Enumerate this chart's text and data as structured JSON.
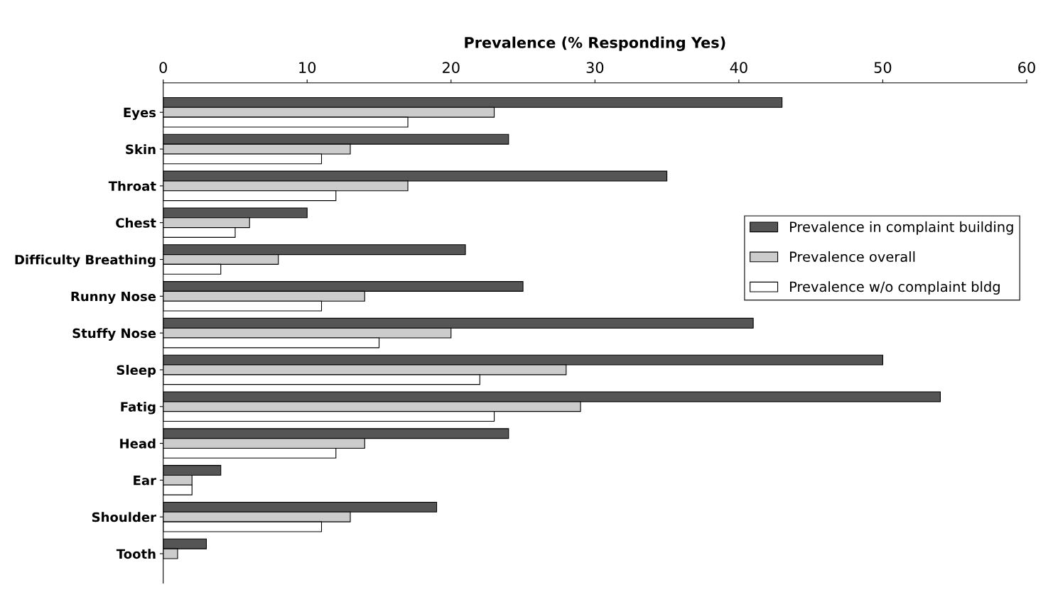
{
  "chart_data": {
    "type": "bar",
    "orientation": "horizontal",
    "xlabel": "Prevalence (% Responding Yes)",
    "categories": [
      "Eyes",
      "Skin",
      "Throat",
      "Chest",
      "Difficulty Breathing",
      "Runny Nose",
      "Stuffy Nose",
      "Sleep",
      "Fatig",
      "Head",
      "Ear",
      "Shoulder",
      "Tooth"
    ],
    "series": [
      {
        "name": "Prevalence in complaint building",
        "color": "#555555",
        "values": [
          43,
          24,
          35,
          10,
          21,
          25,
          41,
          50,
          54,
          24,
          4,
          19,
          3
        ]
      },
      {
        "name": "Prevalence overall",
        "color": "#cccccc",
        "values": [
          23,
          13,
          17,
          6,
          8,
          14,
          20,
          28,
          29,
          14,
          2,
          13,
          1
        ]
      },
      {
        "name": "Prevalence w/o complaint bldg",
        "color": "#ffffff",
        "values": [
          17,
          11,
          12,
          5,
          4,
          11,
          15,
          22,
          23,
          12,
          2,
          11,
          null
        ]
      }
    ],
    "xlim": [
      0,
      60
    ],
    "xticks": [
      0,
      10,
      20,
      30,
      40,
      50,
      60
    ],
    "grid": false,
    "legend": "right"
  }
}
